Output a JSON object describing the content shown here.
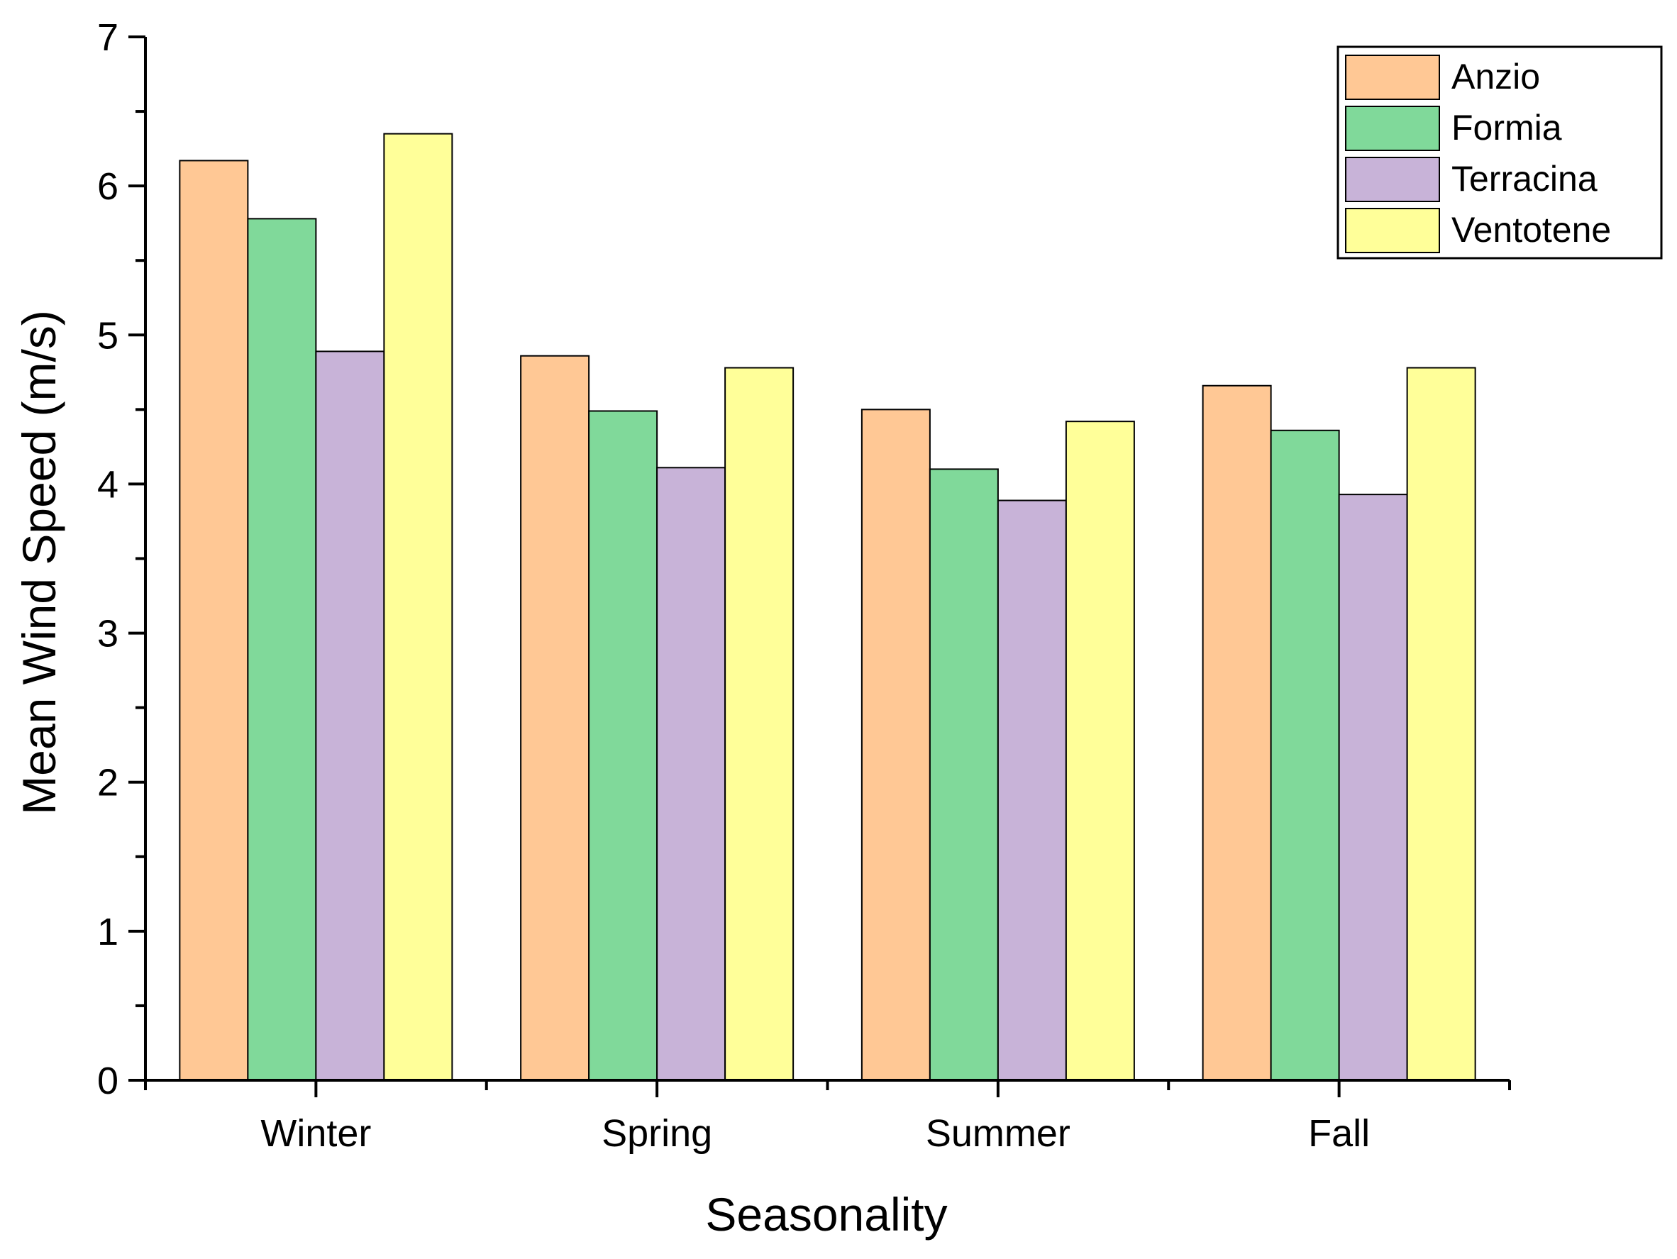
{
  "chart_data": {
    "type": "bar",
    "title": "",
    "xlabel": "Seasonality",
    "ylabel": "Mean Wind Speed (m/s)",
    "categories": [
      "Winter",
      "Spring",
      "Summer",
      "Fall"
    ],
    "ylim": [
      0,
      7
    ],
    "yticks": [
      0,
      1,
      2,
      3,
      4,
      5,
      6,
      7
    ],
    "grid": false,
    "legend_position": "top-right",
    "series": [
      {
        "name": "Anzio",
        "color": "#ffc895",
        "values": [
          6.17,
          4.86,
          4.5,
          4.66
        ]
      },
      {
        "name": "Formia",
        "color": "#80d99a",
        "values": [
          5.78,
          4.49,
          4.1,
          4.36
        ]
      },
      {
        "name": "Terracina",
        "color": "#c8b3d8",
        "values": [
          4.89,
          4.11,
          3.89,
          3.93
        ]
      },
      {
        "name": "Ventotene",
        "color": "#ffff99",
        "values": [
          6.35,
          4.78,
          4.42,
          4.78
        ]
      }
    ]
  }
}
